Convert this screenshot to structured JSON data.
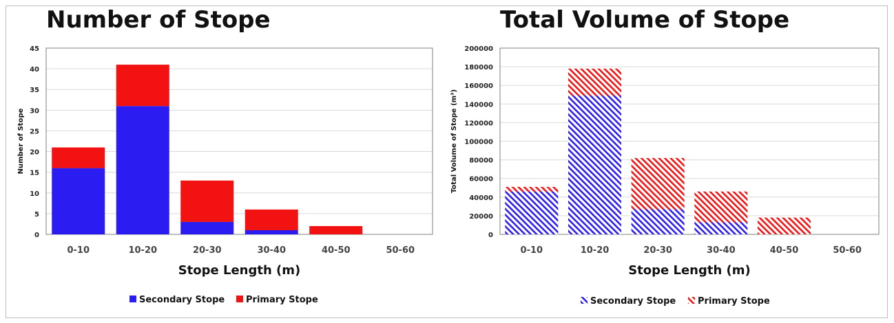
{
  "chart_data": [
    {
      "type": "bar",
      "stacked": true,
      "title": "Number of Stope",
      "xlabel": "Stope Length (m)",
      "ylabel": "Number of Stope",
      "ylim": [
        0,
        45
      ],
      "yticks": [
        0,
        5,
        10,
        15,
        20,
        25,
        30,
        35,
        40,
        45
      ],
      "grid": true,
      "legend": "bottom",
      "categories": [
        "0-10",
        "10-20",
        "20-30",
        "30-40",
        "40-50",
        "50-60"
      ],
      "series": [
        {
          "name": "Secondary Stope",
          "values": [
            16,
            31,
            3,
            1,
            0,
            0
          ],
          "color": "#2b1cf2",
          "pattern": "solid"
        },
        {
          "name": "Primary Stope",
          "values": [
            5,
            10,
            10,
            5,
            2,
            0
          ],
          "color": "#f21212",
          "pattern": "solid"
        }
      ]
    },
    {
      "type": "bar",
      "stacked": true,
      "title": "Total Volume of Stope",
      "xlabel": "Stope Length (m)",
      "ylabel": "Total Volume of Stope (m³)",
      "ylim": [
        0,
        200000
      ],
      "yticks": [
        0,
        20000,
        40000,
        60000,
        80000,
        100000,
        120000,
        140000,
        160000,
        180000,
        200000
      ],
      "grid": true,
      "legend": "bottom",
      "categories": [
        "0-10",
        "10-20",
        "20-30",
        "30-40",
        "40-50",
        "50-60"
      ],
      "series": [
        {
          "name": "Secondary Stope",
          "values": [
            46000,
            149000,
            27000,
            13000,
            0,
            0
          ],
          "color": "#2b1cf2",
          "pattern": "hatch"
        },
        {
          "name": "Primary Stope",
          "values": [
            5000,
            29000,
            55000,
            33000,
            18000,
            0
          ],
          "color": "#f21212",
          "pattern": "hatch"
        }
      ]
    }
  ]
}
